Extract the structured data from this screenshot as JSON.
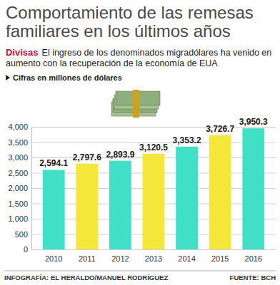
{
  "chart_data": {
    "type": "bar",
    "title": "Comportamiento de las remesas familiares en los últimos años",
    "subtitle": "El ingreso de los denominados migradólares ha venido en aumento con la recuperación de la economía de EUA",
    "annotations": [
      "Divisas",
      "Cifras en millones de dólares",
      "INFOGRAFÍA: EL HERALDO/MANUEL RODRÍGUEZ",
      "FUENTE: BCH"
    ],
    "categories": [
      "2010",
      "2011",
      "2012",
      "2013",
      "2014",
      "2015",
      "2016"
    ],
    "values": [
      2594.1,
      2797.6,
      2893.9,
      3120.5,
      3353.2,
      3726.7,
      3950.3
    ],
    "value_labels": [
      "2,594.1",
      "2,797.6",
      "2,893.9",
      "3,120.5",
      "3,353.2",
      "3,726.7",
      "3,950.3"
    ],
    "colors": [
      "#3fe0c5",
      "#f5e73a",
      "#3fe0c5",
      "#f5e73a",
      "#3fe0c5",
      "#f5e73a",
      "#3fe0c5"
    ],
    "ylim": [
      0,
      4000
    ],
    "yticks": [
      0,
      500,
      {
        "value": 1000,
        "label": "1,000"
      },
      {
        "value": 1500,
        "label": "1,500"
      },
      {
        "value": 2000,
        "label": "2,000"
      },
      {
        "value": 2500,
        "label": "2,500"
      },
      {
        "value": 3000,
        "label": "3,000"
      },
      {
        "value": 3500,
        "label": "3,500"
      },
      {
        "value": 4000,
        "label": "4,000"
      }
    ],
    "grid": true,
    "data_labels": true
  }
}
